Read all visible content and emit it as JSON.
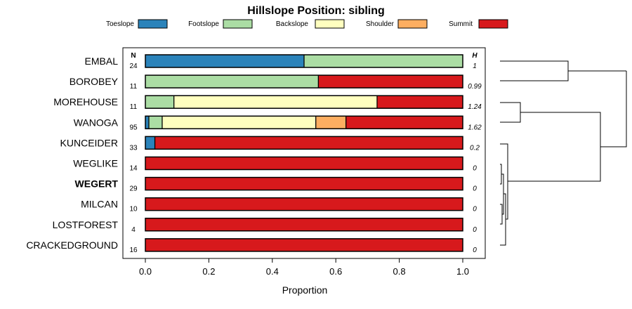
{
  "chart_data": {
    "type": "bar",
    "orientation": "horizontal",
    "stacked": true,
    "title": "Hillslope Position: sibling",
    "xlabel": "Proportion",
    "xlim": [
      0,
      1
    ],
    "x_ticks": [
      "0.0",
      "0.2",
      "0.4",
      "0.6",
      "0.8",
      "1.0"
    ],
    "n_header": "N",
    "h_header": "H",
    "highlight_category": "WEGERT",
    "series": [
      {
        "name": "Toeslope",
        "color": "#2b83ba"
      },
      {
        "name": "Footslope",
        "color": "#abdda4"
      },
      {
        "name": "Backslope",
        "color": "#ffffbf"
      },
      {
        "name": "Shoulder",
        "color": "#fdae61"
      },
      {
        "name": "Summit",
        "color": "#d7191c"
      }
    ],
    "categories": [
      {
        "label": "EMBAL",
        "n": "24",
        "h": "1",
        "values": [
          0.5,
          0.5,
          0,
          0,
          0
        ]
      },
      {
        "label": "BOROBEY",
        "n": "11",
        "h": "0.99",
        "values": [
          0,
          0.545,
          0,
          0,
          0.455
        ]
      },
      {
        "label": "MOREHOUSE",
        "n": "11",
        "h": "1.24",
        "values": [
          0,
          0.09,
          0.64,
          0,
          0.27
        ]
      },
      {
        "label": "WANOGA",
        "n": "95",
        "h": "1.62",
        "values": [
          0.011,
          0.042,
          0.484,
          0.095,
          0.368
        ]
      },
      {
        "label": "KUNCEIDER",
        "n": "33",
        "h": "0.2",
        "values": [
          0.03,
          0,
          0,
          0,
          0.97
        ]
      },
      {
        "label": "WEGLIKE",
        "n": "14",
        "h": "0",
        "values": [
          0,
          0,
          0,
          0,
          1
        ]
      },
      {
        "label": "WEGERT",
        "n": "29",
        "h": "0",
        "values": [
          0,
          0,
          0,
          0,
          1
        ]
      },
      {
        "label": "MILCAN",
        "n": "10",
        "h": "0",
        "values": [
          0,
          0,
          0,
          0,
          1
        ]
      },
      {
        "label": "LOSTFOREST",
        "n": "4",
        "h": "0",
        "values": [
          0,
          0,
          0,
          0,
          1
        ]
      },
      {
        "label": "CRACKEDGROUND",
        "n": "16",
        "h": "0",
        "values": [
          0,
          0,
          0,
          0,
          1
        ]
      }
    ]
  }
}
